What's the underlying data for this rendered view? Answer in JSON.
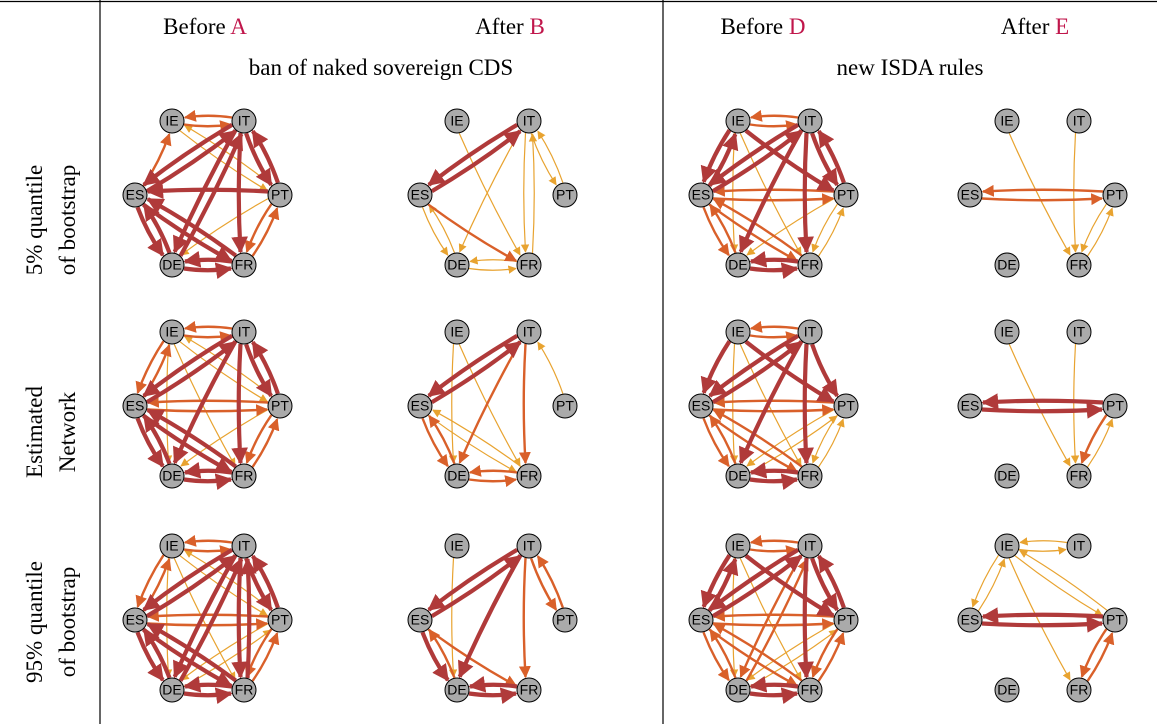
{
  "header": {
    "groups": [
      {
        "columns": [
          {
            "label": "Before",
            "marker": "A"
          },
          {
            "label": "After",
            "marker": "B"
          }
        ],
        "caption": "ban of naked sovereign CDS"
      },
      {
        "columns": [
          {
            "label": "Before",
            "marker": "D"
          },
          {
            "label": "After",
            "marker": "E"
          }
        ],
        "caption": "new ISDA rules"
      }
    ]
  },
  "rows": [
    {
      "label": [
        "5% quantile",
        "of bootstrap"
      ]
    },
    {
      "label": [
        "Estimated",
        "Network"
      ]
    },
    {
      "label": [
        "95% quantile",
        "of bootstrap"
      ]
    }
  ],
  "nodes": [
    "IE",
    "IT",
    "ES",
    "PT",
    "DE",
    "FR"
  ]
}
